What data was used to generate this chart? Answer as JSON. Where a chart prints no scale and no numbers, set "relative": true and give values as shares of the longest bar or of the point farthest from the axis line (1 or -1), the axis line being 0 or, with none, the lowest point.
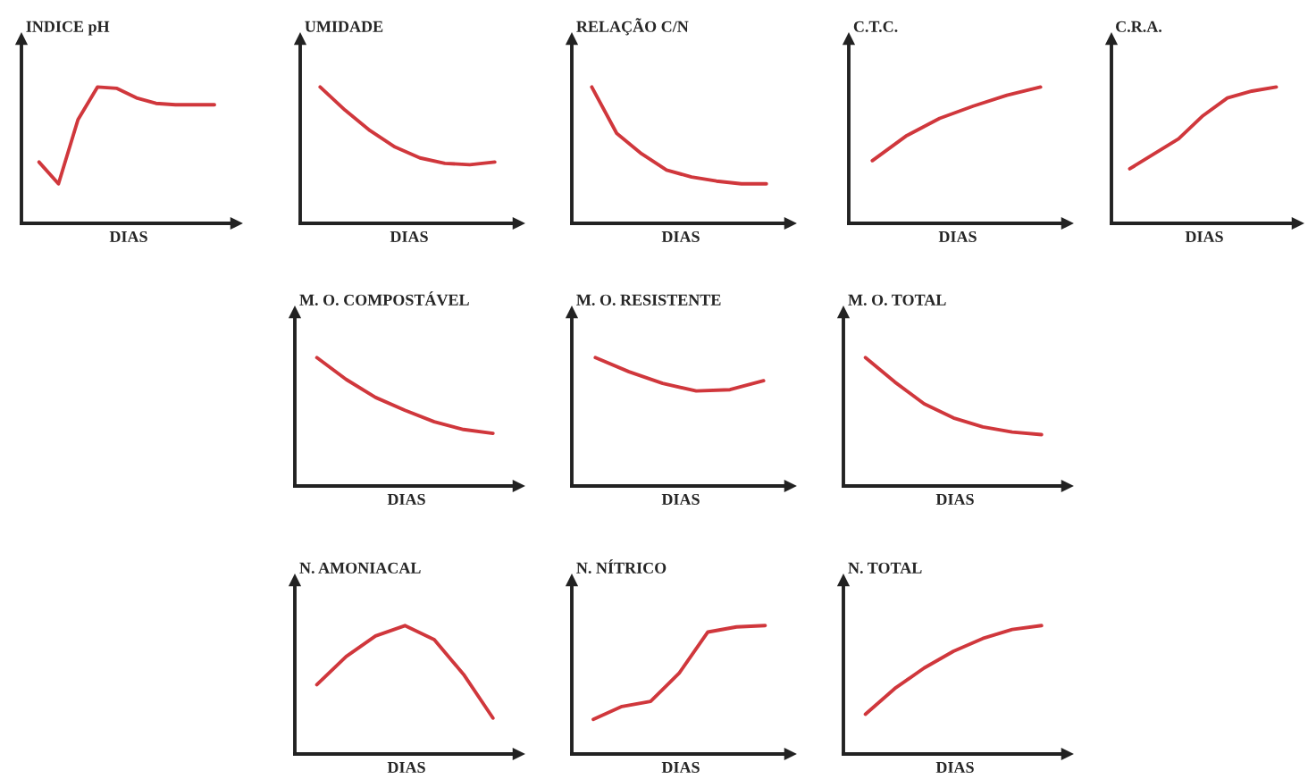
{
  "chart_data": [
    {
      "type": "line",
      "title": "INDICE pH",
      "xlabel": "DIAS",
      "relative": true,
      "tick_labels": false,
      "categories": [
        null,
        null,
        null,
        null,
        null,
        null,
        null,
        null,
        null,
        null
      ],
      "series": [
        {
          "color": "#d0373c",
          "values": [
            0.45,
            0.29,
            0.76,
            1,
            0.99,
            0.92,
            0.88,
            0.87,
            0.87,
            0.87
          ]
        }
      ]
    },
    {
      "type": "line",
      "title": "UMIDADE",
      "xlabel": "DIAS",
      "relative": true,
      "tick_labels": false,
      "categories": [
        null,
        null,
        null,
        null,
        null,
        null,
        null,
        null
      ],
      "series": [
        {
          "color": "#d0373c",
          "values": [
            1,
            0.83,
            0.68,
            0.56,
            0.48,
            0.44,
            0.43,
            0.45
          ]
        }
      ]
    },
    {
      "type": "line",
      "title": "RELAÇÃO C/N",
      "xlabel": "DIAS",
      "relative": true,
      "tick_labels": false,
      "categories": [
        null,
        null,
        null,
        null,
        null,
        null,
        null,
        null
      ],
      "series": [
        {
          "color": "#d0373c",
          "values": [
            1,
            0.66,
            0.51,
            0.39,
            0.34,
            0.31,
            0.29,
            0.29
          ]
        }
      ]
    },
    {
      "type": "line",
      "title": "C.T.C.",
      "xlabel": "DIAS",
      "relative": true,
      "tick_labels": false,
      "categories": [
        null,
        null,
        null,
        null,
        null,
        null
      ],
      "series": [
        {
          "color": "#d0373c",
          "values": [
            0.46,
            0.64,
            0.77,
            0.86,
            0.94,
            1
          ]
        }
      ]
    },
    {
      "type": "line",
      "title": "C.R.A.",
      "xlabel": "DIAS",
      "relative": true,
      "tick_labels": false,
      "categories": [
        null,
        null,
        null,
        null,
        null,
        null,
        null
      ],
      "series": [
        {
          "color": "#d0373c",
          "values": [
            0.4,
            0.51,
            0.62,
            0.79,
            0.92,
            0.97,
            1
          ]
        }
      ]
    },
    {
      "type": "line",
      "title": "M. O. COMPOSTÁVEL",
      "xlabel": "DIAS",
      "relative": true,
      "tick_labels": false,
      "categories": [
        null,
        null,
        null,
        null,
        null,
        null,
        null
      ],
      "series": [
        {
          "color": "#d0373c",
          "values": [
            1,
            0.83,
            0.69,
            0.59,
            0.5,
            0.44,
            0.41
          ]
        }
      ]
    },
    {
      "type": "line",
      "title": "M. O. RESISTENTE",
      "xlabel": "DIAS",
      "relative": true,
      "tick_labels": false,
      "categories": [
        null,
        null,
        null,
        null,
        null,
        null
      ],
      "series": [
        {
          "color": "#d0373c",
          "values": [
            1,
            0.89,
            0.8,
            0.74,
            0.75,
            0.82
          ]
        }
      ]
    },
    {
      "type": "line",
      "title": "M. O. TOTAL",
      "xlabel": "DIAS",
      "relative": true,
      "tick_labels": false,
      "categories": [
        null,
        null,
        null,
        null,
        null,
        null,
        null
      ],
      "series": [
        {
          "color": "#d0373c",
          "values": [
            1,
            0.81,
            0.64,
            0.53,
            0.46,
            0.42,
            0.4
          ]
        }
      ]
    },
    {
      "type": "line",
      "title": "N. AMONIACAL",
      "xlabel": "DIAS",
      "relative": true,
      "tick_labels": false,
      "categories": [
        null,
        null,
        null,
        null,
        null,
        null,
        null
      ],
      "series": [
        {
          "color": "#d0373c",
          "values": [
            0.54,
            0.76,
            0.92,
            1,
            0.89,
            0.62,
            0.28
          ]
        }
      ]
    },
    {
      "type": "line",
      "title": "N. NÍTRICO",
      "xlabel": "DIAS",
      "relative": true,
      "tick_labels": false,
      "categories": [
        null,
        null,
        null,
        null,
        null,
        null,
        null
      ],
      "series": [
        {
          "color": "#d0373c",
          "values": [
            0.27,
            0.37,
            0.41,
            0.63,
            0.95,
            0.99,
            1
          ]
        }
      ]
    },
    {
      "type": "line",
      "title": "N. TOTAL",
      "xlabel": "DIAS",
      "relative": true,
      "tick_labels": false,
      "categories": [
        null,
        null,
        null,
        null,
        null,
        null,
        null
      ],
      "series": [
        {
          "color": "#d0373c",
          "values": [
            0.31,
            0.51,
            0.67,
            0.8,
            0.9,
            0.97,
            1
          ]
        }
      ]
    }
  ]
}
